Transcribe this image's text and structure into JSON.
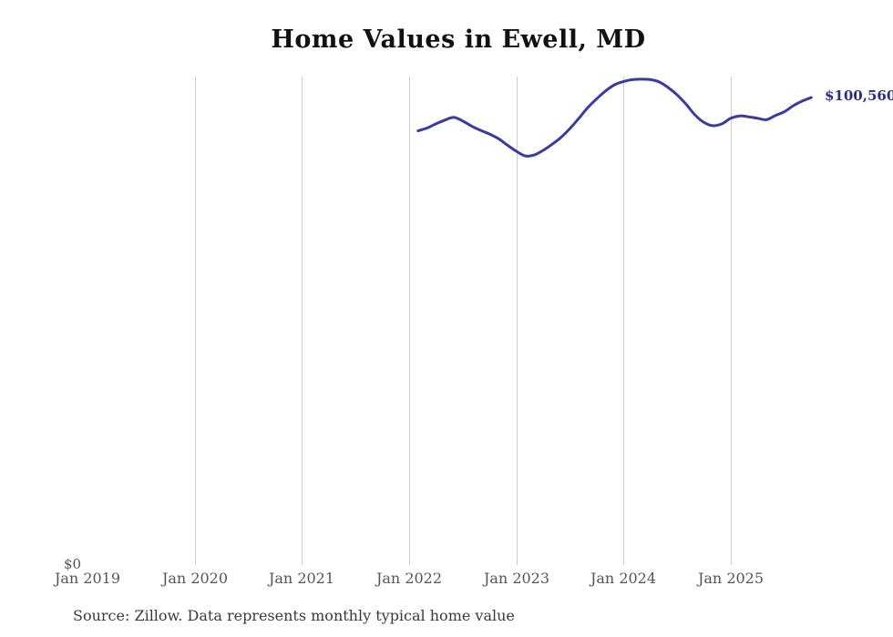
{
  "title": "Home Values in Ewell, MD",
  "source_note": "Source: Zillow. Data represents monthly typical home value",
  "end_label": "$100,560",
  "y_axis": {
    "zero_label": "$0"
  },
  "colors": {
    "line": "#3b3b9d",
    "end_label": "#2c2c87",
    "grid": "#cccccc",
    "axis_text": "#555555",
    "title_text": "#111111",
    "source_text": "#3a3a3a"
  },
  "chart_data": {
    "type": "line",
    "title": "Home Values in Ewell, MD",
    "xlabel": "",
    "ylabel": "",
    "x_tick_labels": [
      "Jan 2019",
      "Jan 2020",
      "Jan 2021",
      "Jan 2022",
      "Jan 2023",
      "Jan 2024",
      "Jan 2025"
    ],
    "x_range_months": [
      "2019-01",
      "2025-10"
    ],
    "ylim": [
      0,
      104700
    ],
    "grid": "vertical",
    "legend": "none",
    "end_value": 100560,
    "end_value_label": "$100,560",
    "x": [
      "2022-02",
      "2022-03",
      "2022-04",
      "2022-05",
      "2022-06",
      "2022-07",
      "2022-08",
      "2022-09",
      "2022-10",
      "2022-11",
      "2022-12",
      "2023-01",
      "2023-02",
      "2023-03",
      "2023-04",
      "2023-05",
      "2023-06",
      "2023-07",
      "2023-08",
      "2023-09",
      "2023-10",
      "2023-11",
      "2023-12",
      "2024-01",
      "2024-02",
      "2024-03",
      "2024-04",
      "2024-05",
      "2024-06",
      "2024-07",
      "2024-08",
      "2024-09",
      "2024-10",
      "2024-11",
      "2024-12",
      "2025-01",
      "2025-02",
      "2025-03",
      "2025-04",
      "2025-05",
      "2025-06",
      "2025-07",
      "2025-08",
      "2025-09",
      "2025-10"
    ],
    "series": [
      {
        "name": "Monthly typical home value",
        "values": [
          93400,
          94000,
          94900,
          95700,
          96300,
          95500,
          94400,
          93500,
          92700,
          91700,
          90300,
          89000,
          88000,
          88200,
          89200,
          90500,
          92000,
          93900,
          96100,
          98400,
          100300,
          102000,
          103300,
          104000,
          104400,
          104500,
          104400,
          103900,
          102700,
          101100,
          99100,
          96800,
          95200,
          94500,
          94900,
          96100,
          96600,
          96400,
          96100,
          95800,
          96700,
          97500,
          98800,
          99800,
          100560
        ]
      }
    ]
  }
}
